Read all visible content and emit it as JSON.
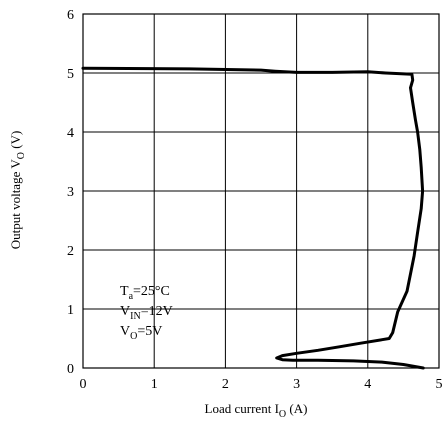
{
  "chart_data": {
    "type": "line",
    "xlabel": {
      "main": "Load current I",
      "sub": "O",
      "unit": " (A)"
    },
    "ylabel": {
      "main": "Output voltage V",
      "sub": "O",
      "unit": " (V)"
    },
    "xlim": [
      0,
      5
    ],
    "ylim": [
      0,
      6
    ],
    "x_ticks": [
      "0",
      "1",
      "2",
      "3",
      "4",
      "5"
    ],
    "y_ticks": [
      "0",
      "1",
      "2",
      "3",
      "4",
      "5",
      "6"
    ],
    "grid": true,
    "annotations": [
      {
        "main": "T",
        "sub": "a",
        "rest": "=25°C"
      },
      {
        "main": "V",
        "sub": "IN",
        "rest": "=12V"
      },
      {
        "main": "V",
        "sub": "O",
        "rest": "=5V"
      }
    ],
    "series": [
      {
        "color": "#000000",
        "x": [
          0.0,
          1.5,
          2.5,
          2.7,
          3.0,
          3.5,
          4.0,
          4.25,
          4.62,
          4.63,
          4.6,
          4.63,
          4.67,
          4.7,
          4.73,
          4.75,
          4.77,
          4.75,
          4.7,
          4.65,
          4.55,
          4.42,
          4.35,
          4.3,
          4.2,
          3.9,
          3.6,
          3.3,
          3.0,
          2.8,
          2.72,
          2.8,
          2.95,
          3.3,
          3.8,
          4.2,
          4.5,
          4.78
        ],
        "y": [
          5.08,
          5.07,
          5.05,
          5.03,
          5.01,
          5.01,
          5.02,
          5.0,
          4.98,
          4.88,
          4.75,
          4.5,
          4.2,
          4.0,
          3.7,
          3.4,
          3.0,
          2.7,
          2.3,
          1.9,
          1.3,
          0.95,
          0.6,
          0.5,
          0.48,
          0.42,
          0.36,
          0.3,
          0.25,
          0.21,
          0.17,
          0.14,
          0.13,
          0.13,
          0.12,
          0.1,
          0.06,
          0.0
        ]
      }
    ]
  }
}
